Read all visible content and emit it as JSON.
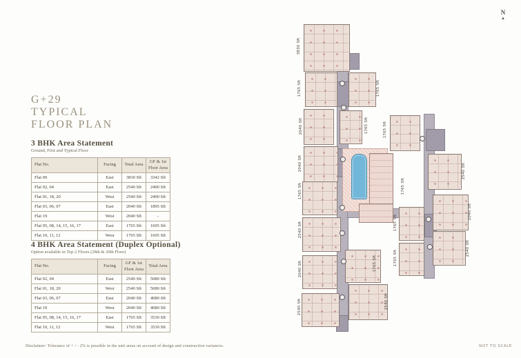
{
  "page": {
    "title_line1": "G+29",
    "title_line2": "TYPICAL",
    "title_line3": "FLOOR PLAN",
    "disclaimer": "Disclaimer: Tolerance of + / - 2% is possible in the unit areas on account of design and construction variances.",
    "compass_label": "N",
    "not_to_scale": "NOT TO SCALE"
  },
  "tables": [
    {
      "title": "3 BHK Area Statement",
      "subtitle": "Ground, First and Typical Floor",
      "headers": [
        "Flat No.",
        "Facing",
        "Total Area",
        "GF & 1st Floor Area"
      ],
      "rows": [
        [
          "Flat 09",
          "East",
          "3830 Sft",
          "3342 Sft"
        ],
        [
          "Flat 02, 04",
          "East",
          "2540 Sft",
          "2400 Sft"
        ],
        [
          "Flat 01, 18, 20",
          "West",
          "2540 Sft",
          "2400 Sft"
        ],
        [
          "Flat 03, 06, 07",
          "East",
          "2040 Sft",
          "1895 Sft"
        ],
        [
          "Flat 19",
          "West",
          "2040 Sft",
          "-"
        ],
        [
          "Flat 05, 08, 14, 15, 16, 17",
          "East",
          "1765 Sft",
          "1695 Sft"
        ],
        [
          "Flat 10, 11, 12",
          "West",
          "1765 Sft",
          "1695 Sft"
        ]
      ]
    },
    {
      "title": "4 BHK Area Statement (Duplex Optional)",
      "subtitle": "Option available in Top 2 Floors (28th & 29th Floor)",
      "headers": [
        "Flat No.",
        "Facing",
        "GF & 1st Floor Area",
        "Total Area"
      ],
      "rows": [
        [
          "Flat 02, 04",
          "East",
          "2540 Sft",
          "5080 Sft"
        ],
        [
          "Flat 01, 18, 20",
          "West",
          "2540 Sft",
          "5080 Sft"
        ],
        [
          "Flat 03, 06, 07",
          "East",
          "2040 Sft",
          "4080 Sft"
        ],
        [
          "Flat 19",
          "West",
          "2040 Sft",
          "4080 Sft"
        ],
        [
          "Flat 05, 08, 14, 15, 16, 17",
          "East",
          "1765 Sft",
          "3530 Sft"
        ],
        [
          "Flat 10, 11, 12",
          "West",
          "1765 Sft",
          "3530 Sft"
        ]
      ]
    }
  ],
  "plan": {
    "area_labels": [
      "3830 Sft",
      "1765 Sft",
      "1765 Sft",
      "2040 Sft",
      "1765 Sft",
      "1765 Sft",
      "2040 Sft",
      "1765 Sft",
      "2540 Sft",
      "2040 Sft",
      "2540 Sft",
      "1765 Sft",
      "1765 Sft",
      "1765 Sft",
      "1765 Sft",
      "2540 Sft",
      "2540 Sft",
      "2040 Sft",
      "2540 Sft"
    ]
  },
  "colors": {
    "title_taupe": "#98907e",
    "table_header_bg": "#ebe6d9",
    "table_border": "#b3ab9b",
    "unit_fill": "#ecdfd8",
    "corridor_fill": "#b7b2bc",
    "pool_blue": "#72b7d9",
    "deck_pink": "#f4e1da"
  }
}
